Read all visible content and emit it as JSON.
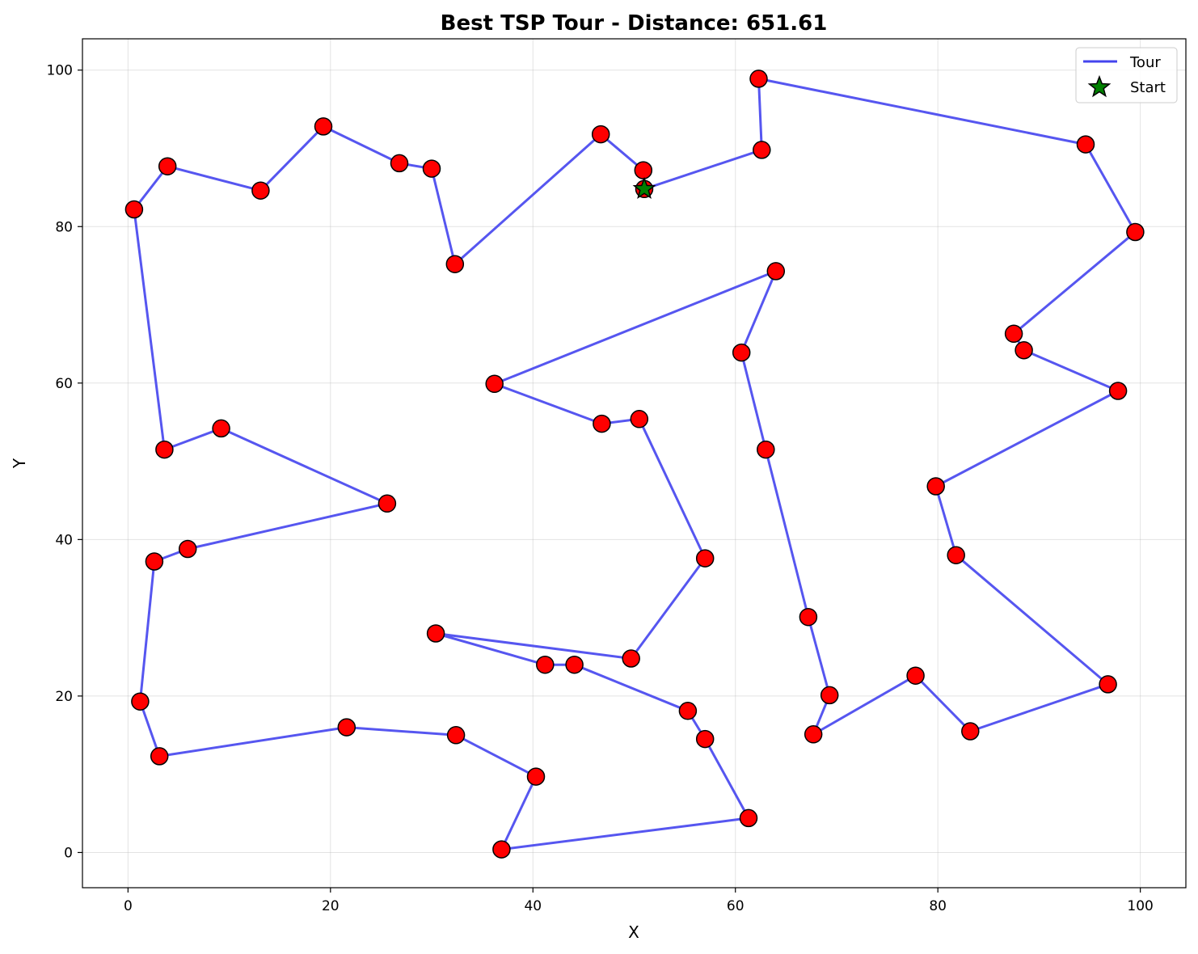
{
  "chart_data": {
    "type": "line",
    "title": "Best TSP Tour - Distance: 651.61",
    "xlabel": "X",
    "ylabel": "Y",
    "xlim": [
      -4.5,
      104.5
    ],
    "ylim": [
      -4.5,
      104
    ],
    "xticks": [
      0,
      20,
      40,
      60,
      80,
      100
    ],
    "yticks": [
      0,
      20,
      40,
      60,
      80,
      100
    ],
    "grid": true,
    "legend_position": "top-right",
    "colors": {
      "tour": "#4444ee",
      "city": "#ff0000",
      "start": "#008000",
      "outline": "#000000"
    },
    "series": [
      {
        "name": "Tour",
        "kind": "line",
        "x": [
          51.0,
          50.9,
          46.7,
          32.3,
          30.0,
          26.8,
          19.3,
          13.1,
          3.9,
          0.6,
          3.6,
          9.2,
          25.6,
          5.9,
          2.6,
          1.2,
          3.1,
          21.6,
          32.4,
          40.3,
          36.9,
          61.3,
          57.0,
          55.3,
          44.1,
          41.2,
          30.4,
          49.7,
          57.0,
          50.5,
          46.8,
          36.2,
          64.0,
          60.6,
          63.0,
          67.2,
          69.3,
          67.7,
          77.8,
          83.2,
          96.8,
          81.8,
          79.8,
          97.8,
          88.5,
          87.5,
          99.5,
          94.6,
          62.3,
          62.6,
          51.0
        ],
        "y": [
          84.8,
          87.2,
          91.8,
          75.2,
          87.4,
          88.1,
          92.8,
          84.6,
          87.7,
          82.2,
          51.5,
          54.2,
          44.6,
          38.8,
          37.2,
          19.3,
          12.3,
          16.0,
          15.0,
          9.7,
          0.4,
          4.4,
          14.5,
          18.1,
          24.0,
          24.0,
          28.0,
          24.8,
          37.6,
          55.4,
          54.8,
          59.9,
          74.3,
          63.9,
          51.5,
          30.1,
          20.1,
          15.1,
          22.6,
          15.5,
          21.5,
          38.0,
          46.8,
          59.0,
          64.2,
          66.3,
          79.3,
          90.5,
          98.9,
          89.8,
          84.8
        ]
      },
      {
        "name": "Start",
        "kind": "marker",
        "x": [
          51.0
        ],
        "y": [
          84.8
        ]
      }
    ]
  }
}
